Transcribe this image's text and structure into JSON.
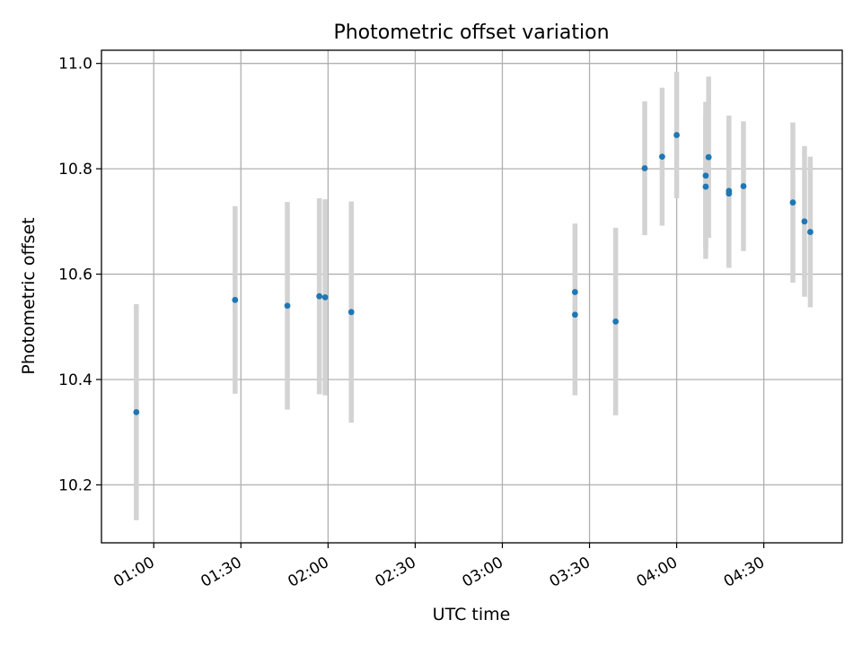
{
  "chart_data": {
    "type": "scatter",
    "title": "Photometric offset variation",
    "xlabel": "UTC time",
    "ylabel": "Photometric offset",
    "x_unit": "UTC time",
    "xlim": [
      "00:42",
      "04:57"
    ],
    "ylim": [
      10.09,
      11.025
    ],
    "x_ticks": [
      "01:00",
      "01:30",
      "02:00",
      "02:30",
      "03:00",
      "03:30",
      "04:00",
      "04:30"
    ],
    "y_ticks": [
      10.2,
      10.4,
      10.6,
      10.8,
      11.0
    ],
    "y_tick_labels": [
      "10.2",
      "10.4",
      "10.6",
      "10.8",
      "11.0"
    ],
    "grid": true,
    "marker_color": "#1f77b4",
    "errorbar_color": "#d3d3d3",
    "points": [
      {
        "x": "00:54",
        "y": 10.338,
        "err": 0.205
      },
      {
        "x": "01:28",
        "y": 10.551,
        "err": 0.178
      },
      {
        "x": "01:46",
        "y": 10.54,
        "err": 0.197
      },
      {
        "x": "01:57",
        "y": 10.558,
        "err": 0.186
      },
      {
        "x": "01:59",
        "y": 10.556,
        "err": 0.186
      },
      {
        "x": "02:08",
        "y": 10.528,
        "err": 0.21
      },
      {
        "x": "03:25",
        "y": 10.566,
        "err": 0.13
      },
      {
        "x": "03:25",
        "y": 10.523,
        "err": 0.153
      },
      {
        "x": "03:39",
        "y": 10.51,
        "err": 0.178
      },
      {
        "x": "03:49",
        "y": 10.801,
        "err": 0.127
      },
      {
        "x": "03:55",
        "y": 10.823,
        "err": 0.131
      },
      {
        "x": "04:00",
        "y": 10.864,
        "err": 0.12
      },
      {
        "x": "04:10",
        "y": 10.766,
        "err": 0.137
      },
      {
        "x": "04:10",
        "y": 10.787,
        "err": 0.14
      },
      {
        "x": "04:11",
        "y": 10.822,
        "err": 0.153
      },
      {
        "x": "04:18",
        "y": 10.758,
        "err": 0.143
      },
      {
        "x": "04:18",
        "y": 10.753,
        "err": 0.141
      },
      {
        "x": "04:23",
        "y": 10.767,
        "err": 0.123
      },
      {
        "x": "04:40",
        "y": 10.736,
        "err": 0.152
      },
      {
        "x": "04:44",
        "y": 10.7,
        "err": 0.143
      },
      {
        "x": "04:46",
        "y": 10.68,
        "err": 0.143
      }
    ]
  }
}
